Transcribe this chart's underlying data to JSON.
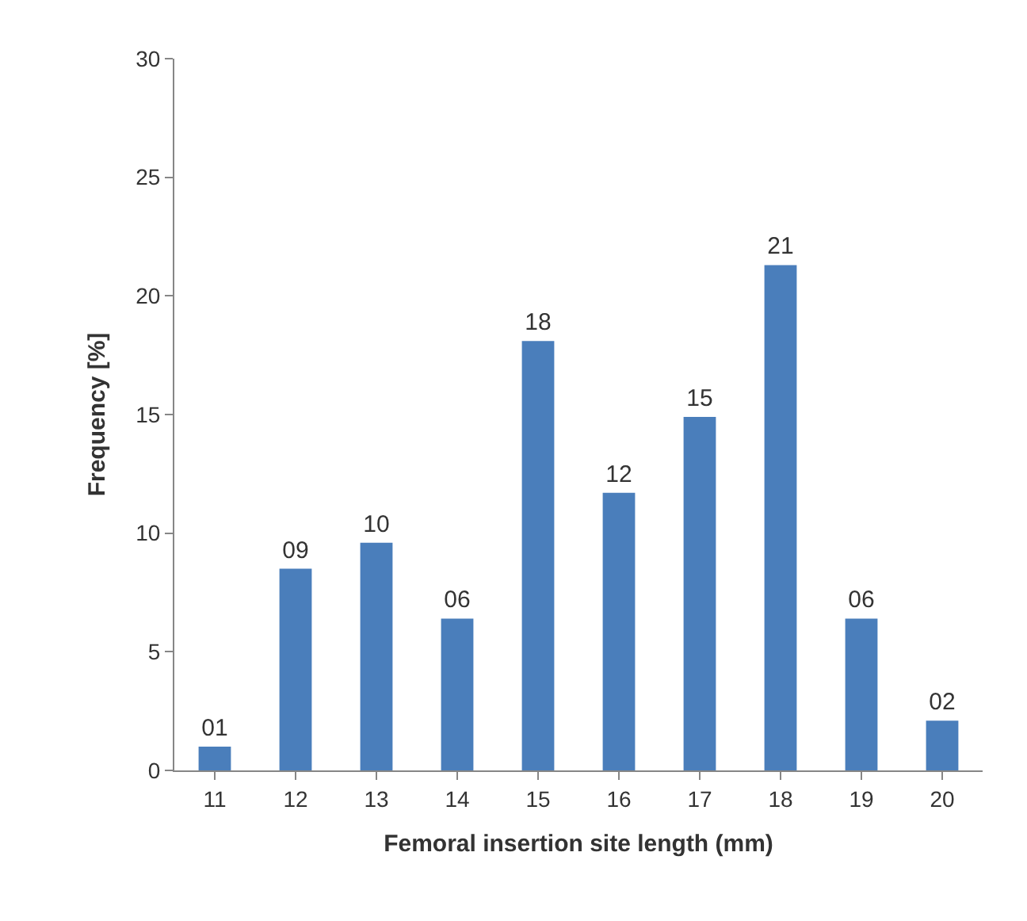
{
  "chart_data": {
    "type": "bar",
    "xlabel": "Femoral insertion site length (mm)",
    "ylabel": "Frequency [%]",
    "categories": [
      "11",
      "12",
      "13",
      "14",
      "15",
      "16",
      "17",
      "18",
      "19",
      "20"
    ],
    "values": [
      1.0,
      8.5,
      9.6,
      6.4,
      18.1,
      11.7,
      14.9,
      21.3,
      6.4,
      2.1
    ],
    "value_labels": [
      "01",
      "09",
      "10",
      "06",
      "18",
      "12",
      "15",
      "21",
      "06",
      "02"
    ],
    "color": "#4a7ebb",
    "ylim": [
      0,
      30
    ],
    "yticks": [
      0,
      5,
      10,
      15,
      20,
      25,
      30
    ]
  }
}
